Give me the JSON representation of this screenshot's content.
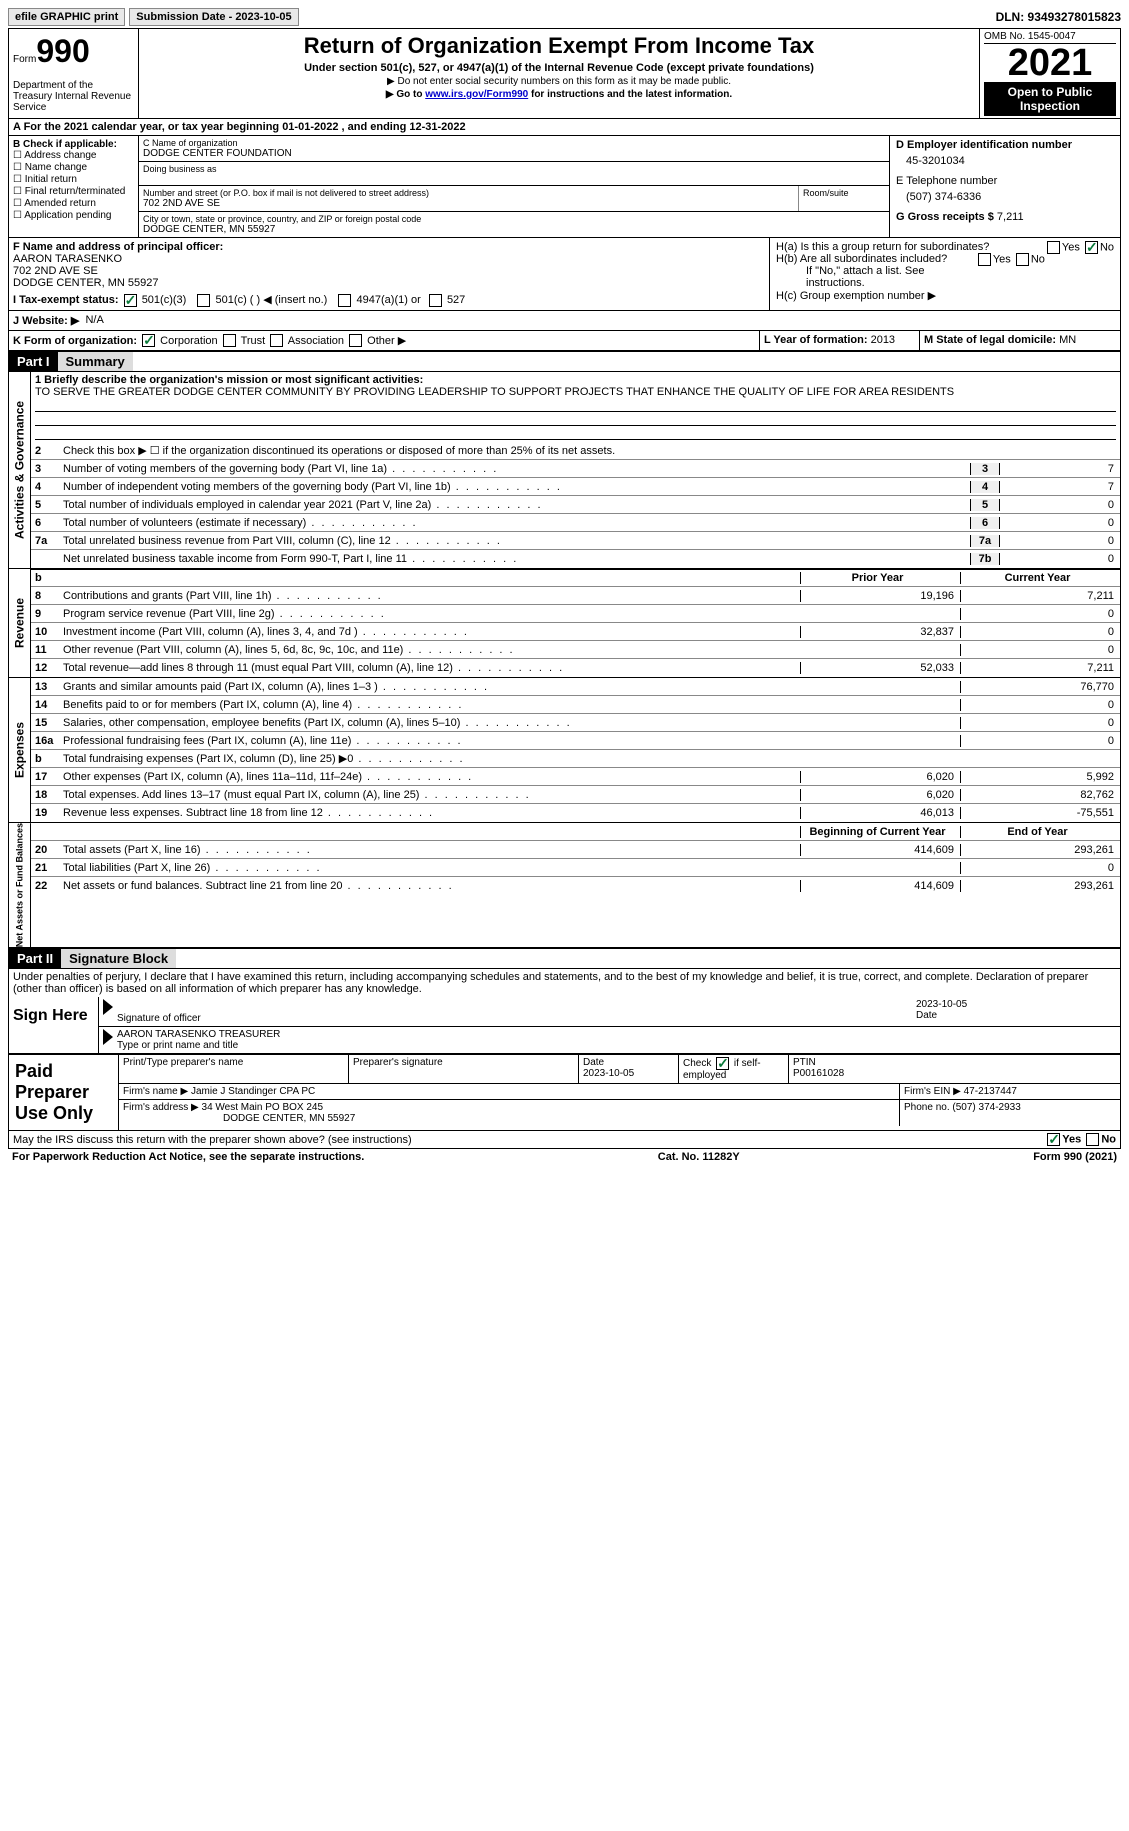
{
  "topbar": {
    "efile": "efile GRAPHIC print",
    "submission": "Submission Date - 2023-10-05",
    "dln": "DLN: 93493278015823"
  },
  "header": {
    "form_label": "Form",
    "form_num": "990",
    "dept": "Department of the Treasury Internal Revenue Service",
    "title": "Return of Organization Exempt From Income Tax",
    "sub1": "Under section 501(c), 527, or 4947(a)(1) of the Internal Revenue Code (except private foundations)",
    "sub2": "▶ Do not enter social security numbers on this form as it may be made public.",
    "sub3_pre": "▶ Go to ",
    "sub3_link": "www.irs.gov/Form990",
    "sub3_post": " for instructions and the latest information.",
    "omb": "OMB No. 1545-0047",
    "year": "2021",
    "open": "Open to Public Inspection"
  },
  "row_a": "A For the 2021 calendar year, or tax year beginning 01-01-2022    , and ending 12-31-2022",
  "section_b": {
    "label": "B Check if applicable:",
    "opts": [
      "☐ Address change",
      "☐ Name change",
      "☐ Initial return",
      "☐ Final return/terminated",
      "☐ Amended return",
      "☐ Application pending"
    ]
  },
  "section_c": {
    "name_label": "C Name of organization",
    "name": "DODGE CENTER FOUNDATION",
    "dba_label": "Doing business as",
    "dba": "",
    "addr_label": "Number and street (or P.O. box if mail is not delivered to street address)",
    "addr": "702 2ND AVE SE",
    "room_label": "Room/suite",
    "city_label": "City or town, state or province, country, and ZIP or foreign postal code",
    "city": "DODGE CENTER, MN  55927"
  },
  "section_d": {
    "ein_label": "D Employer identification number",
    "ein": "45-3201034",
    "tel_label": "E Telephone number",
    "tel": "(507) 374-6336",
    "gross_label": "G Gross receipts $",
    "gross": "7,211"
  },
  "section_f": {
    "label": "F Name and address of principal officer:",
    "name": "AARON TARASENKO",
    "addr1": "702 2ND AVE SE",
    "addr2": "DODGE CENTER, MN  55927"
  },
  "section_i": {
    "label": "I   Tax-exempt status:",
    "opt1": "501(c)(3)",
    "opt2": "501(c) (  ) ◀ (insert no.)",
    "opt3": "4947(a)(1) or",
    "opt4": "527"
  },
  "section_h": {
    "ha": "H(a)  Is this a group return for subordinates?",
    "hb": "H(b)  Are all subordinates included?",
    "hb2": "If \"No,\" attach a list. See instructions.",
    "hc": "H(c)  Group exemption number ▶"
  },
  "section_j": {
    "label": "J   Website: ▶",
    "val": "N/A"
  },
  "section_k": {
    "label": "K Form of organization:",
    "opts": [
      "Corporation",
      "Trust",
      "Association",
      "Other ▶"
    ]
  },
  "section_l": {
    "label": "L Year of formation:",
    "val": "2013"
  },
  "section_m": {
    "label": "M State of legal domicile:",
    "val": "MN"
  },
  "part1": {
    "hdr": "Part I",
    "title": "Summary",
    "l1_label": "1  Briefly describe the organization's mission or most significant activities:",
    "l1": "TO SERVE THE GREATER DODGE CENTER COMMUNITY BY PROVIDING LEADERSHIP TO SUPPORT PROJECTS THAT ENHANCE THE QUALITY OF LIFE FOR AREA RESIDENTS",
    "l2": "Check this box ▶ ☐  if the organization discontinued its operations or disposed of more than 25% of its net assets.",
    "vert_ag": "Activities & Governance",
    "vert_rev": "Revenue",
    "vert_exp": "Expenses",
    "vert_na": "Net Assets or Fund Balances",
    "lines_gov": [
      {
        "n": "3",
        "d": "Number of voting members of the governing body (Part VI, line 1a)",
        "box": "3",
        "v": "7"
      },
      {
        "n": "4",
        "d": "Number of independent voting members of the governing body (Part VI, line 1b)",
        "box": "4",
        "v": "7"
      },
      {
        "n": "5",
        "d": "Total number of individuals employed in calendar year 2021 (Part V, line 2a)",
        "box": "5",
        "v": "0"
      },
      {
        "n": "6",
        "d": "Total number of volunteers (estimate if necessary)",
        "box": "6",
        "v": "0"
      },
      {
        "n": "7a",
        "d": "Total unrelated business revenue from Part VIII, column (C), line 12",
        "box": "7a",
        "v": "0"
      },
      {
        "n": "",
        "d": "Net unrelated business taxable income from Form 990-T, Part I, line 11",
        "box": "7b",
        "v": "0"
      }
    ],
    "prior_hdr": "Prior Year",
    "current_hdr": "Current Year",
    "lines_rev": [
      {
        "n": "8",
        "d": "Contributions and grants (Part VIII, line 1h)",
        "p": "19,196",
        "c": "7,211"
      },
      {
        "n": "9",
        "d": "Program service revenue (Part VIII, line 2g)",
        "p": "",
        "c": "0"
      },
      {
        "n": "10",
        "d": "Investment income (Part VIII, column (A), lines 3, 4, and 7d )",
        "p": "32,837",
        "c": "0"
      },
      {
        "n": "11",
        "d": "Other revenue (Part VIII, column (A), lines 5, 6d, 8c, 9c, 10c, and 11e)",
        "p": "",
        "c": "0"
      },
      {
        "n": "12",
        "d": "Total revenue—add lines 8 through 11 (must equal Part VIII, column (A), line 12)",
        "p": "52,033",
        "c": "7,211"
      }
    ],
    "lines_exp": [
      {
        "n": "13",
        "d": "Grants and similar amounts paid (Part IX, column (A), lines 1–3 )",
        "p": "",
        "c": "76,770"
      },
      {
        "n": "14",
        "d": "Benefits paid to or for members (Part IX, column (A), line 4)",
        "p": "",
        "c": "0"
      },
      {
        "n": "15",
        "d": "Salaries, other compensation, employee benefits (Part IX, column (A), lines 5–10)",
        "p": "",
        "c": "0"
      },
      {
        "n": "16a",
        "d": "Professional fundraising fees (Part IX, column (A), line 11e)",
        "p": "",
        "c": "0"
      },
      {
        "n": "b",
        "d": "Total fundraising expenses (Part IX, column (D), line 25) ▶0",
        "p": "SHADED",
        "c": "SHADED"
      },
      {
        "n": "17",
        "d": "Other expenses (Part IX, column (A), lines 11a–11d, 11f–24e)",
        "p": "6,020",
        "c": "5,992"
      },
      {
        "n": "18",
        "d": "Total expenses. Add lines 13–17 (must equal Part IX, column (A), line 25)",
        "p": "6,020",
        "c": "82,762"
      },
      {
        "n": "19",
        "d": "Revenue less expenses. Subtract line 18 from line 12",
        "p": "46,013",
        "c": "-75,551"
      }
    ],
    "begin_hdr": "Beginning of Current Year",
    "end_hdr": "End of Year",
    "lines_na": [
      {
        "n": "20",
        "d": "Total assets (Part X, line 16)",
        "p": "414,609",
        "c": "293,261"
      },
      {
        "n": "21",
        "d": "Total liabilities (Part X, line 26)",
        "p": "",
        "c": "0"
      },
      {
        "n": "22",
        "d": "Net assets or fund balances. Subtract line 21 from line 20",
        "p": "414,609",
        "c": "293,261"
      }
    ]
  },
  "part2": {
    "hdr": "Part II",
    "title": "Signature Block",
    "decl": "Under penalties of perjury, I declare that I have examined this return, including accompanying schedules and statements, and to the best of my knowledge and belief, it is true, correct, and complete. Declaration of preparer (other than officer) is based on all information of which preparer has any knowledge.",
    "sign_here": "Sign Here",
    "sig_officer": "Signature of officer",
    "sig_date_label": "Date",
    "sig_date": "2023-10-05",
    "officer_name": "AARON TARASENKO TREASURER",
    "type_name": "Type or print name and title",
    "paid_label": "Paid Preparer Use Only",
    "prep_name_label": "Print/Type preparer's name",
    "prep_sig_label": "Preparer's signature",
    "prep_date_label": "Date",
    "prep_date": "2023-10-05",
    "check_if": "Check ☑ if self-employed",
    "ptin_label": "PTIN",
    "ptin": "P00161028",
    "firm_name_label": "Firm's name    ▶",
    "firm_name": "Jamie J Standinger CPA PC",
    "firm_ein_label": "Firm's EIN ▶",
    "firm_ein": "47-2137447",
    "firm_addr_label": "Firm's address ▶",
    "firm_addr1": "34 West Main PO BOX 245",
    "firm_addr2": "DODGE CENTER, MN  55927",
    "firm_phone_label": "Phone no.",
    "firm_phone": "(507) 374-2933",
    "discuss": "May the IRS discuss this return with the preparer shown above? (see instructions)",
    "yes": "Yes",
    "no": "No"
  },
  "footer": {
    "pra": "For Paperwork Reduction Act Notice, see the separate instructions.",
    "cat": "Cat. No. 11282Y",
    "form": "Form 990 (2021)"
  }
}
